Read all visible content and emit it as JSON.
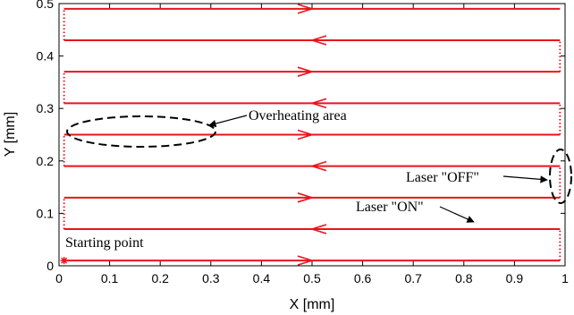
{
  "chart_data": {
    "type": "line",
    "xlabel": "X [mm]",
    "ylabel": "Y [mm]",
    "xlim": [
      0,
      1.0
    ],
    "ylim": [
      0,
      0.5
    ],
    "xticks": [
      0,
      0.1,
      0.2,
      0.3,
      0.4,
      0.5,
      0.6,
      0.7,
      0.8,
      0.9,
      1
    ],
    "yticks": [
      0,
      0.1,
      0.2,
      0.3,
      0.4,
      0.5
    ],
    "xtick_labels": [
      "0",
      "0.1",
      "0.2",
      "0.3",
      "0.4",
      "0.5",
      "0.6",
      "0.7",
      "0.8",
      "0.9",
      "1"
    ],
    "ytick_labels": [
      "0",
      "0.1",
      "0.2",
      "0.3",
      "0.4",
      "0.5"
    ],
    "grid": false,
    "color": "#e8141c",
    "scan_lines": [
      {
        "y": 0.01,
        "direction": "right"
      },
      {
        "y": 0.07,
        "direction": "left"
      },
      {
        "y": 0.13,
        "direction": "right"
      },
      {
        "y": 0.19,
        "direction": "left"
      },
      {
        "y": 0.25,
        "direction": "right"
      },
      {
        "y": 0.31,
        "direction": "left"
      },
      {
        "y": 0.37,
        "direction": "right"
      },
      {
        "y": 0.43,
        "direction": "left"
      },
      {
        "y": 0.49,
        "direction": "right"
      }
    ],
    "scan_x_range": [
      0.01,
      0.99
    ],
    "start_point": {
      "x": 0.01,
      "y": 0.01
    },
    "annotations": {
      "overheating": {
        "text": "Overheating area",
        "x": 0.29,
        "y": 0.25
      },
      "laser_off": {
        "text": "Laser \"OFF\"",
        "x": 0.99,
        "y": 0.16
      },
      "laser_on": {
        "text": "Laser \"ON\"",
        "x": 0.62,
        "y": 0.07
      },
      "starting": {
        "text": "Starting point",
        "x": 0.01,
        "y": 0.01
      }
    }
  }
}
